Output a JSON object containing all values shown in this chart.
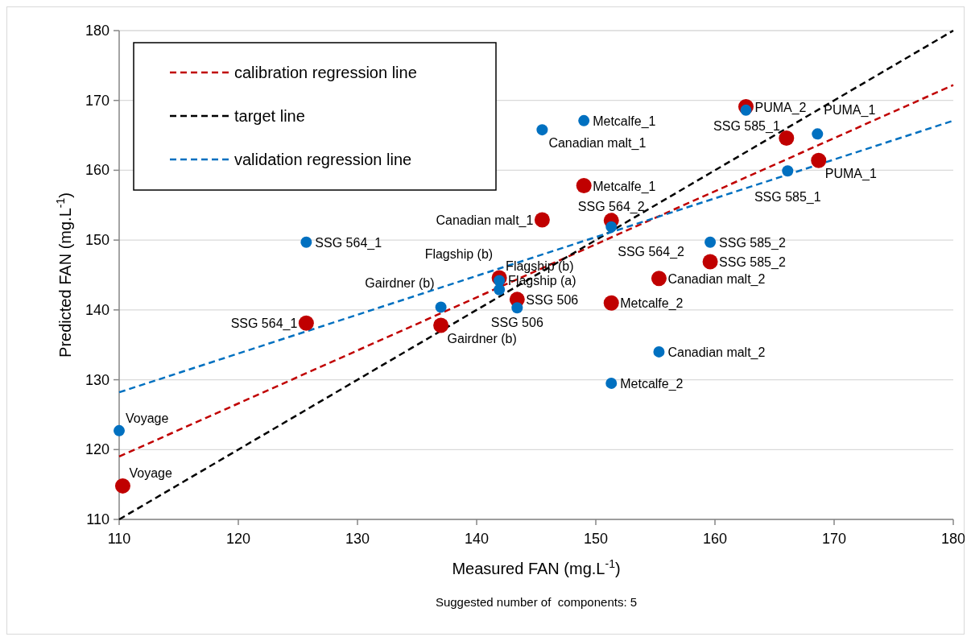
{
  "chart_data": {
    "type": "scatter",
    "xlabel": "Measured FAN (mg.L$^{-1}$)",
    "ylabel": "Predicted FAN (mg.L$^{-1}$)",
    "xlim": [
      110,
      180
    ],
    "xticks": [
      110,
      120,
      130,
      140,
      150,
      160,
      170,
      180
    ],
    "ylim": [
      110,
      180
    ],
    "yticks": [
      110,
      120,
      130,
      140,
      150,
      160,
      170,
      180
    ],
    "grid": "y",
    "legend": "top left",
    "series": [
      {
        "marker": "circle",
        "color": "#c00000",
        "x": [
          110.3,
          125.7,
          137.0,
          141.9,
          143.4,
          145.5,
          149.0,
          151.3,
          151.3,
          155.3,
          159.6,
          162.6,
          166.0,
          168.7
        ],
        "values": [
          114.8,
          138.1,
          137.8,
          144.6,
          141.5,
          152.9,
          157.8,
          152.8,
          141.0,
          144.5,
          146.9,
          169.1,
          164.6,
          161.4
        ]
      },
      {
        "marker": "circle",
        "color": "#0070c0",
        "x": [
          110.0,
          125.7,
          137.0,
          141.9,
          141.9,
          143.4,
          145.5,
          149.0,
          151.3,
          151.3,
          155.3,
          159.6,
          162.6,
          166.1,
          168.6
        ],
        "values": [
          122.7,
          149.7,
          140.4,
          144.2,
          142.9,
          140.3,
          165.8,
          167.1,
          151.9,
          129.5,
          134.0,
          149.7,
          168.6,
          159.9,
          165.2
        ]
      },
      {
        "type": "line",
        "name": "calibration regression line",
        "color": "#c00000",
        "line_style": "dashed",
        "x": [
          110,
          180
        ],
        "values": [
          119.0,
          172.2
        ]
      },
      {
        "type": "line",
        "name": "target line",
        "color": "#000000",
        "line_style": "dashed",
        "x": [
          110,
          180
        ],
        "values": [
          110,
          180
        ]
      },
      {
        "type": "line",
        "name": "validation regression line",
        "color": "#0070c0",
        "line_style": "dashed",
        "x": [
          110,
          180
        ],
        "values": [
          128.2,
          167.1
        ]
      }
    ],
    "annotations": [
      {
        "text": "Voyage",
        "x": 110.3,
        "y": 114.8
      },
      {
        "text": "SSG 564_1",
        "x": 125.7,
        "y": 138.1
      },
      {
        "text": "Gairdner (b)",
        "x": 137.0,
        "y": 137.8
      },
      {
        "text": "Flagship (b)",
        "x": 141.9,
        "y": 144.6
      },
      {
        "text": "SSG 506",
        "x": 143.4,
        "y": 141.5
      },
      {
        "text": "Canadian malt_1",
        "x": 145.5,
        "y": 152.9
      },
      {
        "text": "Metcalfe_1",
        "x": 149.0,
        "y": 157.8
      },
      {
        "text": "SSG 564_2",
        "x": 151.3,
        "y": 152.8
      },
      {
        "text": "Metcalfe_2",
        "x": 151.3,
        "y": 141.0
      },
      {
        "text": "Canadian malt_2",
        "x": 155.3,
        "y": 144.5
      },
      {
        "text": "SSG 585_2",
        "x": 159.6,
        "y": 146.9
      },
      {
        "text": "PUMA_2",
        "x": 162.6,
        "y": 169.1
      },
      {
        "text": "SSG 585_1",
        "x": 166.0,
        "y": 164.6
      },
      {
        "text": "PUMA_1",
        "x": 168.7,
        "y": 161.4
      },
      {
        "text": "Voyage",
        "x": 110.0,
        "y": 122.7
      },
      {
        "text": "SSG 564_1",
        "x": 125.7,
        "y": 149.7
      },
      {
        "text": "Gairdner (b)",
        "x": 137.0,
        "y": 140.4
      },
      {
        "text": "Flagship (a)",
        "x": 141.9,
        "y": 144.2
      },
      {
        "text": "Flagship (b)",
        "x": 141.9,
        "y": 142.9
      },
      {
        "text": "SSG 506",
        "x": 143.4,
        "y": 140.3
      },
      {
        "text": "Canadian malt_1",
        "x": 145.5,
        "y": 165.8
      },
      {
        "text": "Metcalfe_1",
        "x": 149.0,
        "y": 167.1
      },
      {
        "text": "SSG 564_2",
        "x": 151.3,
        "y": 151.9
      },
      {
        "text": "Metcalfe_2",
        "x": 151.3,
        "y": 129.5
      },
      {
        "text": "Canadian malt_2",
        "x": 155.3,
        "y": 134.0
      },
      {
        "text": "SSG 585_2",
        "x": 159.6,
        "y": 149.7
      },
      {
        "text": "SSG 585_1",
        "x": 166.1,
        "y": 159.9
      },
      {
        "text": "PUMA_1",
        "x": 168.6,
        "y": 165.2
      },
      "Suggested number of  components: 5"
    ]
  }
}
